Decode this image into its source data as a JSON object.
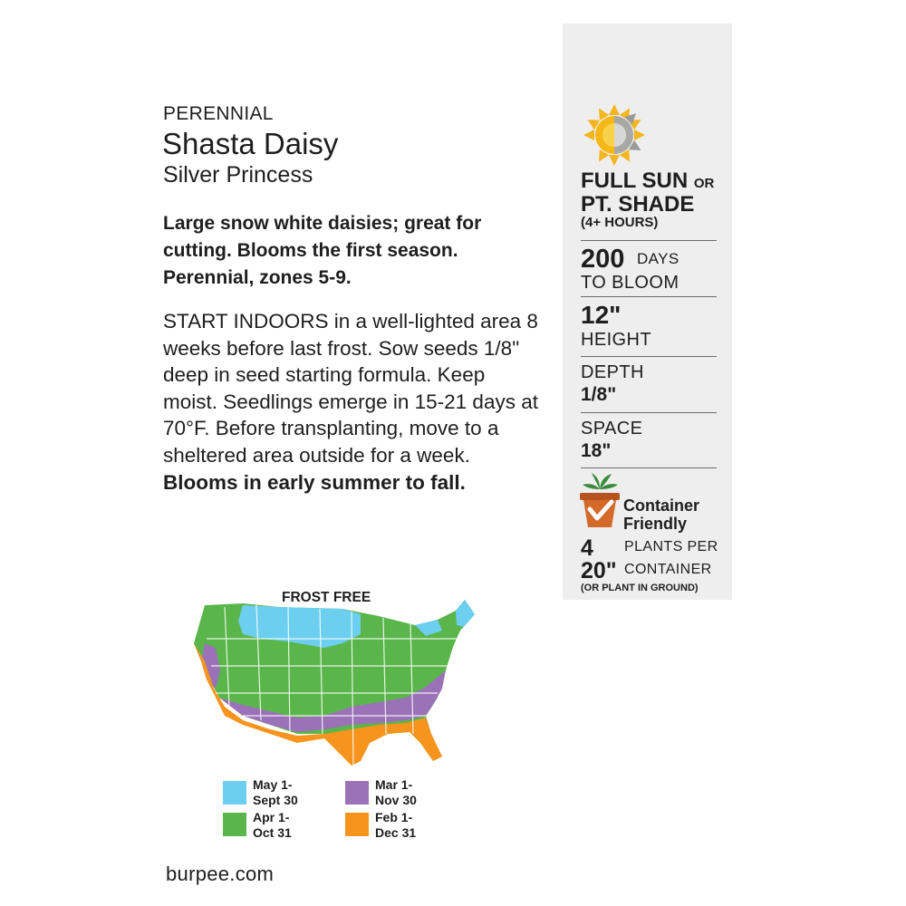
{
  "packet": {
    "category": "PERENNIAL",
    "title": "Shasta Daisy",
    "variety": "Silver Princess",
    "summary": "Large snow white daisies; great for cutting. Blooms the first season. Perennial, zones 5-9.",
    "instructions": "START INDOORS in a well-lighted area 8 weeks before last frost. Sow seeds 1/8\" deep in seed starting formula. Keep moist. Seedlings emerge in 15-21 days at 70°F. Before transplanting, move to a sheltered area outside for a week.",
    "instructions_bold": "Blooms in early summer to fall.",
    "website": "burpee.com"
  },
  "panel": {
    "sun_icon": "sun-half-shade-icon",
    "sun_line1_bold": "FULL SUN",
    "sun_line1_small": "OR",
    "sun_line2": "PT. SHADE",
    "sun_line3": "(4+ HOURS)",
    "days_value": "200",
    "days_unit": "DAYS",
    "days_label": "TO BLOOM",
    "height_value": "12\"",
    "height_label": "HEIGHT",
    "depth_label": "DEPTH",
    "depth_value": "1/8\"",
    "space_label": "SPACE",
    "space_value": "18\"",
    "container_icon": "flower-pot-check-icon",
    "container_line1": "Container",
    "container_line2": "Friendly",
    "plants_value": "4",
    "plants_label": "PLANTS PER",
    "container_size": "20\"",
    "container_label": "CONTAINER",
    "container_note": "(OR PLANT IN GROUND)"
  },
  "map": {
    "title": "FROST FREE",
    "legend": [
      {
        "line1": "May 1-",
        "line2": "Sept 30",
        "color": "#6ccff0"
      },
      {
        "line1": "Mar 1-",
        "line2": "Nov 30",
        "color": "#9b72b8"
      },
      {
        "line1": "Apr 1-",
        "line2": "Oct 31",
        "color": "#5ab54a"
      },
      {
        "line1": "Feb 1-",
        "line2": "Dec 31",
        "color": "#f7941d"
      }
    ]
  }
}
